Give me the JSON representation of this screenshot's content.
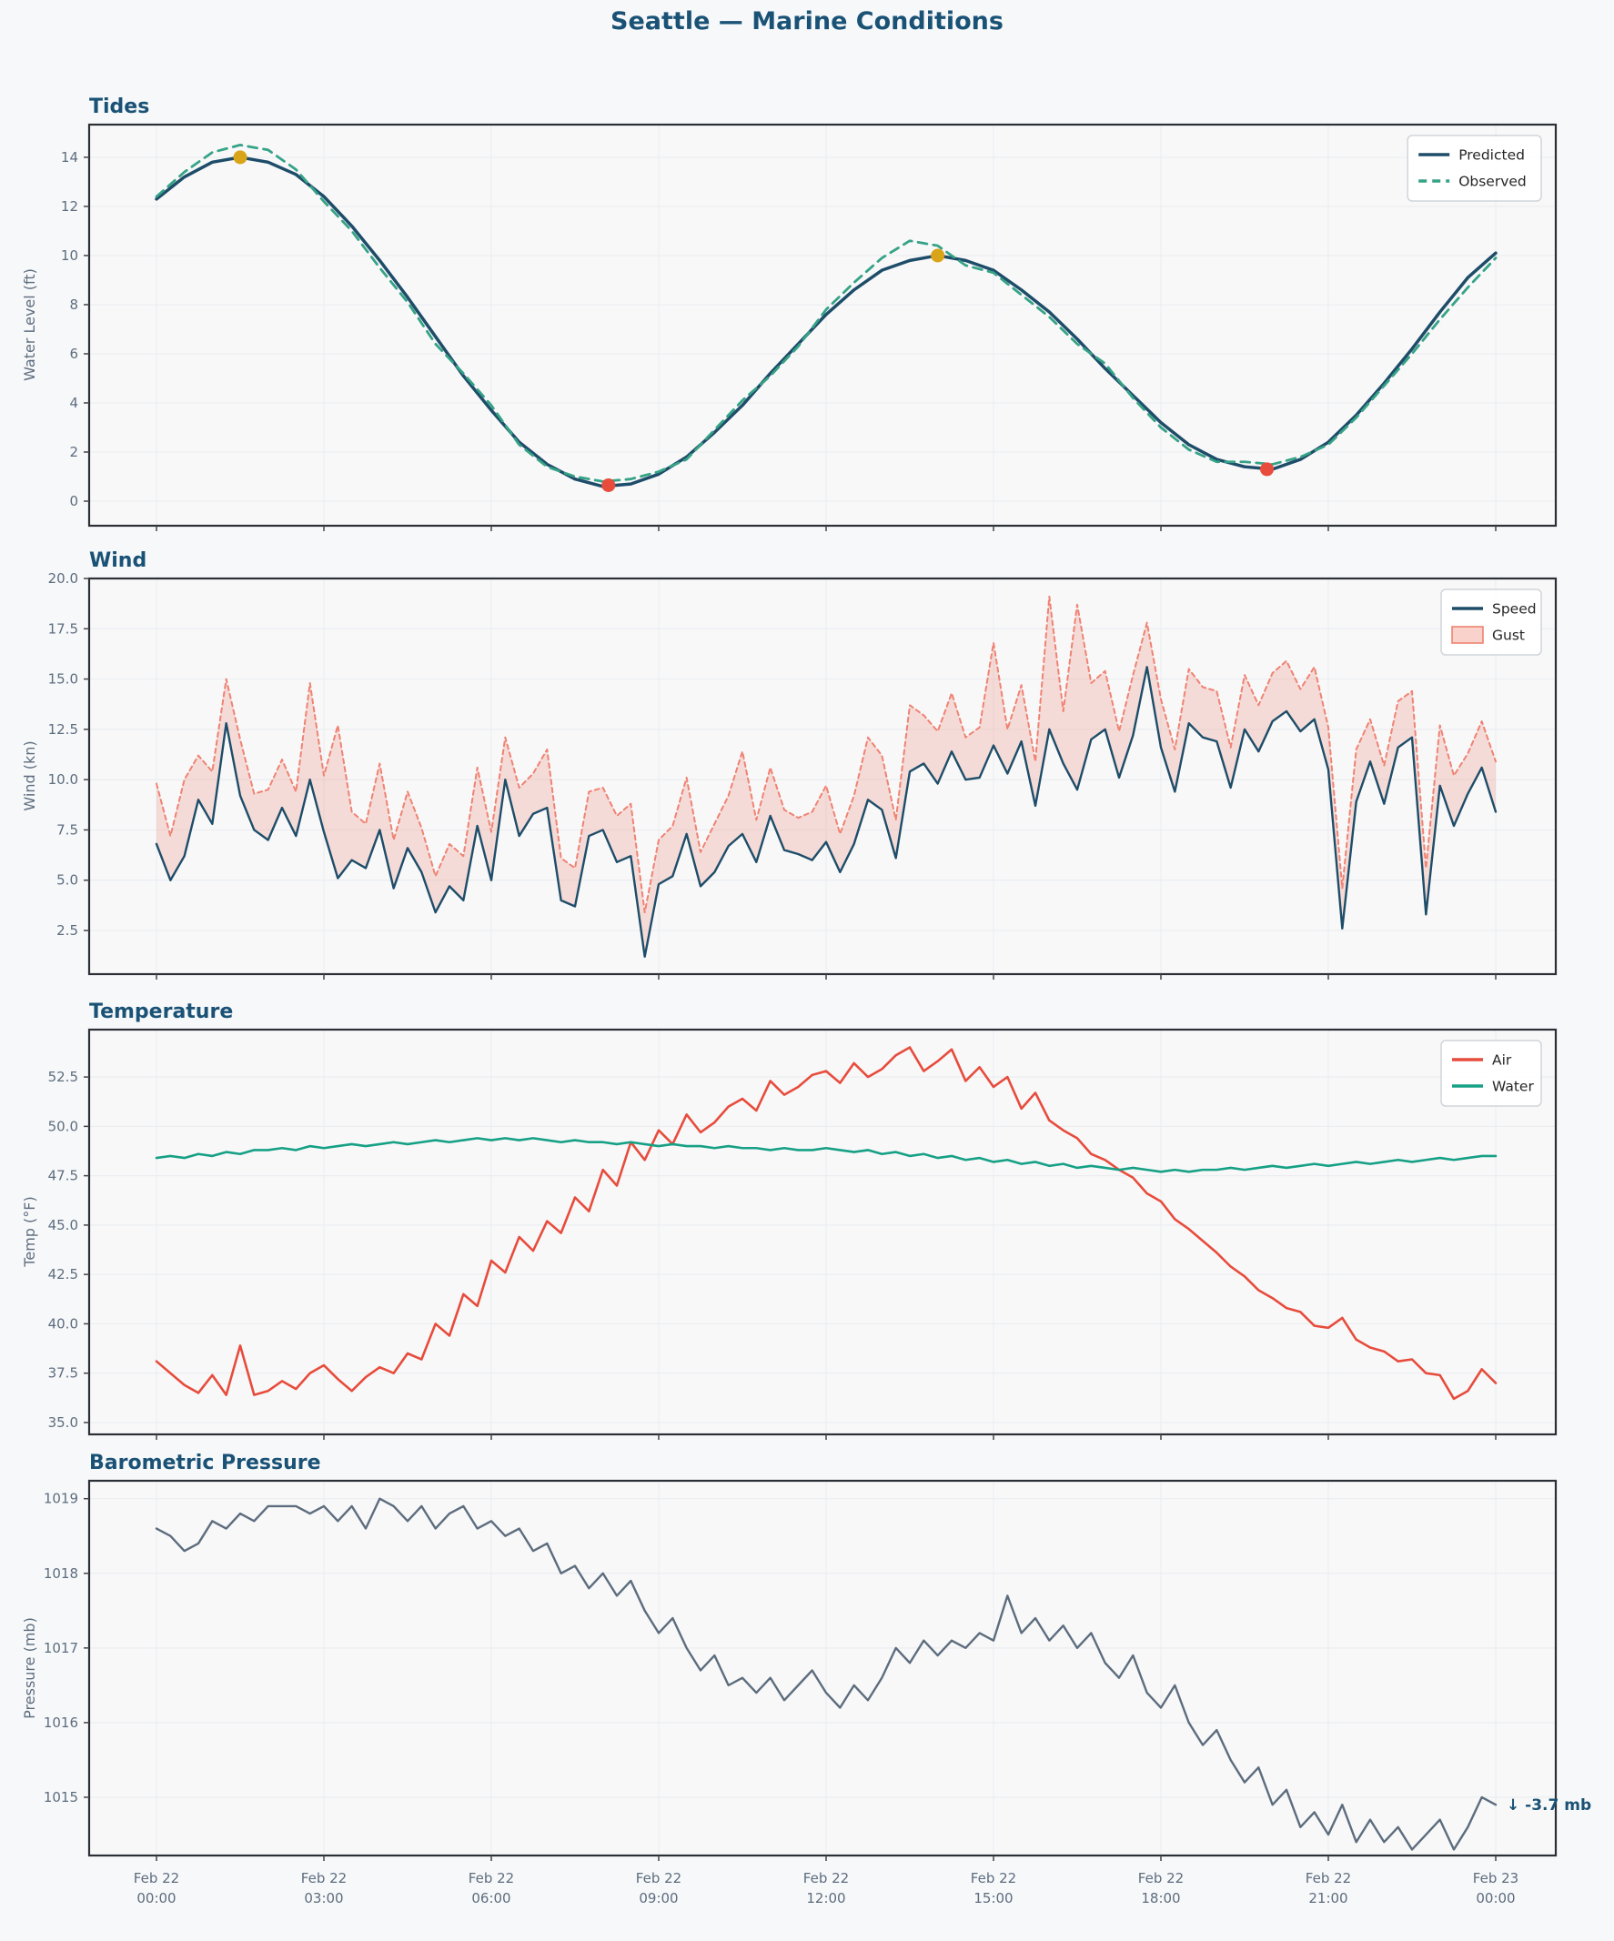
{
  "figure": {
    "title": "Seattle — Marine Conditions",
    "background": "#f7f8fa",
    "title_color": "#1a5276",
    "tick_label_color": "#5d6d7e",
    "spine_color": "#2b3036",
    "grid_color": "#ebedf0",
    "axes_background": "#f8f8f9"
  },
  "x_axis": {
    "start_hour": 0,
    "end_hour": 24,
    "ticks": [
      {
        "h": 0,
        "l1": "Feb 22",
        "l2": "00:00"
      },
      {
        "h": 3,
        "l1": "Feb 22",
        "l2": "03:00"
      },
      {
        "h": 6,
        "l1": "Feb 22",
        "l2": "06:00"
      },
      {
        "h": 9,
        "l1": "Feb 22",
        "l2": "09:00"
      },
      {
        "h": 12,
        "l1": "Feb 22",
        "l2": "12:00"
      },
      {
        "h": 15,
        "l1": "Feb 22",
        "l2": "15:00"
      },
      {
        "h": 18,
        "l1": "Feb 22",
        "l2": "18:00"
      },
      {
        "h": 21,
        "l1": "Feb 22",
        "l2": "21:00"
      },
      {
        "h": 24,
        "l1": "Feb 23",
        "l2": "00:00"
      }
    ]
  },
  "chart_data": [
    {
      "type": "line",
      "title": "Tides",
      "ylabel": "Water Level (ft)",
      "ylim": [
        -1.0,
        15.33
      ],
      "yticks": [
        "0",
        "2",
        "4",
        "6",
        "8",
        "10",
        "12",
        "14"
      ],
      "grid": true,
      "legend_position": "upper right",
      "legend": [
        {
          "label": "Predicted",
          "swatch": "line",
          "color": "#1e4d69",
          "dashed": false
        },
        {
          "label": "Observed",
          "swatch": "line",
          "color": "#36a386",
          "dashed": true
        }
      ],
      "series": [
        {
          "name": "Predicted",
          "color": "#1e4d69",
          "style": "solid",
          "width": 3.5,
          "x_step": 0.5,
          "values": [
            12.3,
            13.2,
            13.8,
            14.0,
            13.8,
            13.3,
            12.4,
            11.2,
            9.8,
            8.3,
            6.7,
            5.1,
            3.7,
            2.4,
            1.5,
            0.9,
            0.6,
            0.7,
            1.1,
            1.8,
            2.8,
            3.9,
            5.2,
            6.4,
            7.6,
            8.6,
            9.4,
            9.8,
            10.0,
            9.8,
            9.4,
            8.6,
            7.7,
            6.6,
            5.4,
            4.3,
            3.2,
            2.3,
            1.7,
            1.4,
            1.3,
            1.7,
            2.4,
            3.5,
            4.8,
            6.2,
            7.7,
            9.1,
            10.1
          ]
        },
        {
          "name": "Observed",
          "color": "#36a386",
          "style": "dashed",
          "width": 2.8,
          "x_step": 0.5,
          "values": [
            12.4,
            13.4,
            14.2,
            14.5,
            14.3,
            13.5,
            12.2,
            11.0,
            9.5,
            8.1,
            6.4,
            5.2,
            3.9,
            2.3,
            1.4,
            1.0,
            0.8,
            0.9,
            1.2,
            1.7,
            2.9,
            4.1,
            5.1,
            6.3,
            7.8,
            8.9,
            9.9,
            10.6,
            10.4,
            9.6,
            9.3,
            8.4,
            7.5,
            6.4,
            5.6,
            4.2,
            3.0,
            2.1,
            1.6,
            1.6,
            1.5,
            1.8,
            2.3,
            3.4,
            4.7,
            6.0,
            7.4,
            8.7,
            9.9
          ]
        }
      ],
      "markers": [
        {
          "type": "high-tide",
          "x": 1.5,
          "y": 14.0,
          "color": "#d9a417"
        },
        {
          "type": "high-tide",
          "x": 14.0,
          "y": 10.0,
          "color": "#d9a417"
        },
        {
          "type": "low-tide",
          "x": 8.1,
          "y": 0.65,
          "color": "#e74c3c"
        },
        {
          "type": "low-tide",
          "x": 19.9,
          "y": 1.3,
          "color": "#e74c3c"
        }
      ]
    },
    {
      "type": "line+band",
      "title": "Wind",
      "ylabel": "Wind (kn)",
      "ylim": [
        0.33,
        20.0
      ],
      "yticks": [
        "2.5",
        "5.0",
        "7.5",
        "10.0",
        "12.5",
        "15.0",
        "17.5",
        "20.0"
      ],
      "grid": true,
      "legend_position": "upper right",
      "legend": [
        {
          "label": "Speed",
          "swatch": "line",
          "color": "#1e4d69",
          "dashed": false
        },
        {
          "label": "Gust",
          "swatch": "patch",
          "color": "#f8d2cb",
          "border": "#ef8373"
        }
      ],
      "band": {
        "upper": "Gust",
        "lower": "Speed",
        "fill": "#f0806e",
        "fill_opacity": 0.24
      },
      "series": [
        {
          "name": "Gust",
          "color": "#ef8373",
          "style": "dashed",
          "width": 2.0,
          "x_step": 0.25,
          "values": [
            9.8,
            7.2,
            10.0,
            11.2,
            10.4,
            15.0,
            12.0,
            9.3,
            9.5,
            11.0,
            9.4,
            14.8,
            10.2,
            12.7,
            8.4,
            7.8,
            10.8,
            7.0,
            9.4,
            7.6,
            5.2,
            6.8,
            6.2,
            10.6,
            7.4,
            12.1,
            9.6,
            10.3,
            11.5,
            6.1,
            5.6,
            9.4,
            9.6,
            8.2,
            8.8,
            3.4,
            7.0,
            7.7,
            10.1,
            6.4,
            7.8,
            9.2,
            11.4,
            8.0,
            10.6,
            8.5,
            8.1,
            8.4,
            9.7,
            7.3,
            9.2,
            12.1,
            11.2,
            8.0,
            13.7,
            13.2,
            12.4,
            14.3,
            12.1,
            12.6,
            16.8,
            12.5,
            14.7,
            10.9,
            19.1,
            13.4,
            18.7,
            14.8,
            15.4,
            12.4,
            15.2,
            17.8,
            14.0,
            11.5,
            15.5,
            14.6,
            14.4,
            11.6,
            15.2,
            13.7,
            15.3,
            15.9,
            14.5,
            15.6,
            12.6,
            4.6,
            11.5,
            13.0,
            10.7,
            13.9,
            14.4,
            5.6,
            12.7,
            10.2,
            11.3,
            12.9,
            10.9
          ]
        },
        {
          "name": "Speed",
          "color": "#1e4d69",
          "style": "solid",
          "width": 2.4,
          "x_step": 0.25,
          "values": [
            6.8,
            5.0,
            6.2,
            9.0,
            7.8,
            12.8,
            9.2,
            7.5,
            7.0,
            8.6,
            7.2,
            10.0,
            7.4,
            5.1,
            6.0,
            5.6,
            7.5,
            4.6,
            6.6,
            5.4,
            3.4,
            4.7,
            4.0,
            7.7,
            5.0,
            10.0,
            7.2,
            8.3,
            8.6,
            4.0,
            3.7,
            7.2,
            7.5,
            5.9,
            6.2,
            1.2,
            4.8,
            5.2,
            7.3,
            4.7,
            5.4,
            6.7,
            7.3,
            5.9,
            8.2,
            6.5,
            6.3,
            6.0,
            6.9,
            5.4,
            6.8,
            9.0,
            8.5,
            6.1,
            10.4,
            10.8,
            9.8,
            11.4,
            10.0,
            10.1,
            11.7,
            10.3,
            11.9,
            8.7,
            12.5,
            10.8,
            9.5,
            12.0,
            12.5,
            10.1,
            12.2,
            15.6,
            11.6,
            9.4,
            12.8,
            12.1,
            11.9,
            9.6,
            12.5,
            11.4,
            12.9,
            13.4,
            12.4,
            13.0,
            10.5,
            2.6,
            8.9,
            10.9,
            8.8,
            11.6,
            12.1,
            3.3,
            9.7,
            7.7,
            9.3,
            10.6,
            8.4
          ]
        }
      ],
      "markers": []
    },
    {
      "type": "line",
      "title": "Temperature",
      "ylabel": "Temp (°F)",
      "ylim": [
        34.4,
        54.9
      ],
      "yticks": [
        "35.0",
        "37.5",
        "40.0",
        "42.5",
        "45.0",
        "47.5",
        "50.0",
        "52.5"
      ],
      "grid": true,
      "legend_position": "upper right",
      "legend": [
        {
          "label": "Air",
          "swatch": "line",
          "color": "#e74c3c",
          "dashed": false
        },
        {
          "label": "Water",
          "swatch": "line",
          "color": "#16a085",
          "dashed": false
        }
      ],
      "series": [
        {
          "name": "Air",
          "color": "#e74c3c",
          "style": "solid",
          "width": 2.6,
          "x_step": 0.25,
          "values": [
            38.1,
            37.5,
            36.9,
            36.5,
            37.4,
            36.4,
            38.9,
            36.4,
            36.6,
            37.1,
            36.7,
            37.5,
            37.9,
            37.2,
            36.6,
            37.3,
            37.8,
            37.5,
            38.5,
            38.2,
            40.0,
            39.4,
            41.5,
            40.9,
            43.2,
            42.6,
            44.4,
            43.7,
            45.2,
            44.6,
            46.4,
            45.7,
            47.8,
            47.0,
            49.2,
            48.3,
            49.8,
            49.1,
            50.6,
            49.7,
            50.2,
            51.0,
            51.4,
            50.8,
            52.3,
            51.6,
            52.0,
            52.6,
            52.8,
            52.2,
            53.2,
            52.5,
            52.9,
            53.6,
            54.0,
            52.8,
            53.3,
            53.9,
            52.3,
            53.0,
            52.0,
            52.5,
            50.9,
            51.7,
            50.3,
            49.8,
            49.4,
            48.6,
            48.3,
            47.8,
            47.4,
            46.6,
            46.2,
            45.3,
            44.8,
            44.2,
            43.6,
            42.9,
            42.4,
            41.7,
            41.3,
            40.8,
            40.6,
            39.9,
            39.8,
            40.3,
            39.2,
            38.8,
            38.6,
            38.1,
            38.2,
            37.5,
            37.4,
            36.2,
            36.6,
            37.7,
            37.0
          ]
        },
        {
          "name": "Water",
          "color": "#16a085",
          "style": "solid",
          "width": 2.6,
          "x_step": 0.25,
          "values": [
            48.4,
            48.5,
            48.4,
            48.6,
            48.5,
            48.7,
            48.6,
            48.8,
            48.8,
            48.9,
            48.8,
            49.0,
            48.9,
            49.0,
            49.1,
            49.0,
            49.1,
            49.2,
            49.1,
            49.2,
            49.3,
            49.2,
            49.3,
            49.4,
            49.3,
            49.4,
            49.3,
            49.4,
            49.3,
            49.2,
            49.3,
            49.2,
            49.2,
            49.1,
            49.2,
            49.1,
            49.0,
            49.1,
            49.0,
            49.0,
            48.9,
            49.0,
            48.9,
            48.9,
            48.8,
            48.9,
            48.8,
            48.8,
            48.9,
            48.8,
            48.7,
            48.8,
            48.6,
            48.7,
            48.5,
            48.6,
            48.4,
            48.5,
            48.3,
            48.4,
            48.2,
            48.3,
            48.1,
            48.2,
            48.0,
            48.1,
            47.9,
            48.0,
            47.9,
            47.8,
            47.9,
            47.8,
            47.7,
            47.8,
            47.7,
            47.8,
            47.8,
            47.9,
            47.8,
            47.9,
            48.0,
            47.9,
            48.0,
            48.1,
            48.0,
            48.1,
            48.2,
            48.1,
            48.2,
            48.3,
            48.2,
            48.3,
            48.4,
            48.3,
            48.4,
            48.5,
            48.5
          ]
        }
      ],
      "markers": []
    },
    {
      "type": "line",
      "title": "Barometric Pressure",
      "ylabel": "Pressure (mb)",
      "ylim": [
        1014.22,
        1019.24
      ],
      "yticks": [
        "1015",
        "1016",
        "1017",
        "1018",
        "1019"
      ],
      "grid": true,
      "annotation": {
        "text": "↓ -3.7 mb",
        "x": 24,
        "y": 1014.9,
        "color": "#1a5276"
      },
      "series": [
        {
          "name": "Pressure",
          "color": "#5d6d7e",
          "style": "solid",
          "width": 2.4,
          "x_step": 0.25,
          "values": [
            1018.6,
            1018.5,
            1018.3,
            1018.4,
            1018.7,
            1018.6,
            1018.8,
            1018.7,
            1018.9,
            1018.9,
            1018.9,
            1018.8,
            1018.9,
            1018.7,
            1018.9,
            1018.6,
            1019.0,
            1018.9,
            1018.7,
            1018.9,
            1018.6,
            1018.8,
            1018.9,
            1018.6,
            1018.7,
            1018.5,
            1018.6,
            1018.3,
            1018.4,
            1018.0,
            1018.1,
            1017.8,
            1018.0,
            1017.7,
            1017.9,
            1017.5,
            1017.2,
            1017.4,
            1017.0,
            1016.7,
            1016.9,
            1016.5,
            1016.6,
            1016.4,
            1016.6,
            1016.3,
            1016.5,
            1016.7,
            1016.4,
            1016.2,
            1016.5,
            1016.3,
            1016.6,
            1017.0,
            1016.8,
            1017.1,
            1016.9,
            1017.1,
            1017.0,
            1017.2,
            1017.1,
            1017.7,
            1017.2,
            1017.4,
            1017.1,
            1017.3,
            1017.0,
            1017.2,
            1016.8,
            1016.6,
            1016.9,
            1016.4,
            1016.2,
            1016.5,
            1016.0,
            1015.7,
            1015.9,
            1015.5,
            1015.2,
            1015.4,
            1014.9,
            1015.1,
            1014.6,
            1014.8,
            1014.5,
            1014.9,
            1014.4,
            1014.7,
            1014.4,
            1014.6,
            1014.3,
            1014.5,
            1014.7,
            1014.3,
            1014.6,
            1015.0,
            1014.9
          ]
        }
      ],
      "markers": []
    }
  ]
}
